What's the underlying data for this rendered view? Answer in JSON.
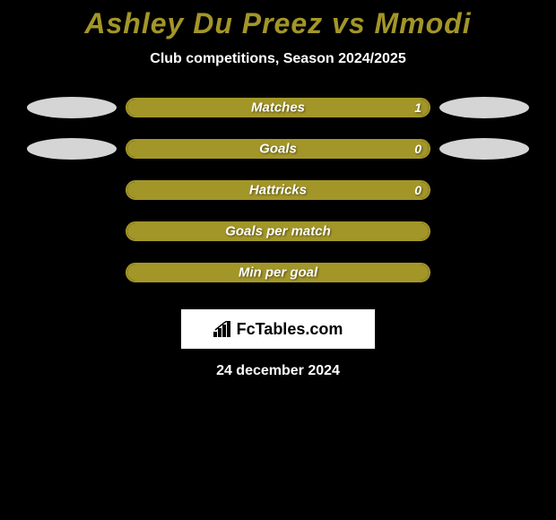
{
  "background_color": "#000000",
  "title": {
    "text": "Ashley Du Preez vs Mmodi",
    "color": "#a39628",
    "fontsize": 32
  },
  "subtitle": {
    "text": "Club competitions, Season 2024/2025",
    "color": "#ffffff",
    "fontsize": 16
  },
  "bar_style": {
    "border_color": "#a39628",
    "fill_color": "#a39628",
    "track_width": 340,
    "track_height": 22,
    "border_radius": 11,
    "label_color": "#ffffff",
    "label_fontsize": 15
  },
  "ellipse_style": {
    "width": 100,
    "height": 24,
    "color": "#d5d5d5"
  },
  "stats": [
    {
      "label": "Matches",
      "value": "1",
      "fill_pct": 100,
      "left_ellipse": true,
      "right_ellipse": true
    },
    {
      "label": "Goals",
      "value": "0",
      "fill_pct": 100,
      "left_ellipse": true,
      "right_ellipse": true
    },
    {
      "label": "Hattricks",
      "value": "0",
      "fill_pct": 100,
      "left_ellipse": false,
      "right_ellipse": false
    },
    {
      "label": "Goals per match",
      "value": "",
      "fill_pct": 100,
      "left_ellipse": false,
      "right_ellipse": false
    },
    {
      "label": "Min per goal",
      "value": "",
      "fill_pct": 100,
      "left_ellipse": false,
      "right_ellipse": false
    }
  ],
  "logo": {
    "text": "FcTables.com",
    "box_bg": "#ffffff",
    "text_color": "#000000"
  },
  "date": {
    "text": "24 december 2024",
    "color": "#ffffff"
  }
}
